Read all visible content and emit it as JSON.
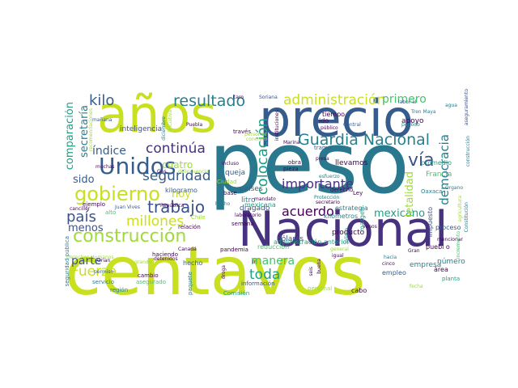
{
  "wordcloud": {
    "palette": {
      "lime": "#c8e020",
      "yellowgreen": "#a0da39",
      "green": "#4ac16d",
      "teal": "#1fa187",
      "cyan": "#277f8e",
      "blue": "#365c8d",
      "indigo": "#46327e",
      "purple": "#440154"
    },
    "words": [
      {
        "text": "peso",
        "color": "#2a788e"
      },
      {
        "text": "centavos",
        "color": "#c8e020"
      },
      {
        "text": "Nacional",
        "color": "#46327e"
      },
      {
        "text": "precio",
        "color": "#365c8d"
      },
      {
        "text": "años",
        "color": "#c8e020"
      },
      {
        "text": "construcción",
        "color": "#a0da39"
      },
      {
        "text": "Unidos",
        "color": "#365c8d"
      },
      {
        "text": "gobierno",
        "color": "#c8e020"
      },
      {
        "text": "Guardia Nacional",
        "color": "#277f8e"
      },
      {
        "text": "trabajo",
        "color": "#3b528b"
      },
      {
        "text": "resultado",
        "color": "#277f8e"
      },
      {
        "text": "administración",
        "color": "#c8e020"
      },
      {
        "text": "colocación",
        "color": "#1fa187"
      },
      {
        "text": "seguridad",
        "color": "#365c8d"
      },
      {
        "text": "continúa",
        "color": "#46327e"
      },
      {
        "text": "millones",
        "color": "#c8e020"
      },
      {
        "text": "kilo",
        "color": "#365c8d"
      },
      {
        "text": "país",
        "color": "#3b528b"
      },
      {
        "text": "acuerdo",
        "color": "#440154"
      },
      {
        "text": "importante",
        "color": "#46327e"
      },
      {
        "text": "vía",
        "color": "#3b528b"
      },
      {
        "text": "Fuerza",
        "color": "#c8e020"
      },
      {
        "text": "toda",
        "color": "#1fa187"
      },
      {
        "text": "democracia",
        "color": "#277f8e"
      },
      {
        "text": "primero",
        "color": "#4ac16d"
      },
      {
        "text": "manera",
        "color": "#4ac16d"
      },
      {
        "text": "parte",
        "color": "#3b528b"
      },
      {
        "text": "mexicano",
        "color": "#1fa187"
      },
      {
        "text": "comparación",
        "color": "#1fa187"
      },
      {
        "text": "secretaría",
        "color": "#277f8e"
      },
      {
        "text": "índice",
        "color": "#365c8d"
      },
      {
        "text": "cuatro",
        "color": "#a0da39"
      },
      {
        "text": "hoy",
        "color": "#c8e020"
      },
      {
        "text": "sido",
        "color": "#365c8d"
      },
      {
        "text": "menos",
        "color": "#3b528b"
      },
      {
        "text": "letalidad",
        "color": "#a0da39"
      },
      {
        "text": "Francia",
        "color": "#4ac16d"
      },
      {
        "text": "estrategia",
        "color": "#277f8e"
      },
      {
        "text": "kilómetros",
        "color": "#277f8e"
      },
      {
        "text": "litro",
        "color": "#277f8e"
      },
      {
        "text": "dragado",
        "color": "#3b528b"
      },
      {
        "text": "mexicana",
        "color": "#1fa187"
      },
      {
        "text": "semana",
        "color": "#440154"
      },
      {
        "text": "países",
        "color": "#365c8d"
      },
      {
        "text": "queja",
        "color": "#365c8d"
      },
      {
        "text": "llevamos",
        "color": "#440154"
      },
      {
        "text": "apoyo",
        "color": "#440154"
      },
      {
        "text": "tiempo",
        "color": "#440154"
      },
      {
        "text": "ido",
        "color": "#440154"
      },
      {
        "text": "inteligencia",
        "color": "#3b528b"
      },
      {
        "text": "impuesto",
        "color": "#3b528b"
      },
      {
        "text": "promedio",
        "color": "#1fa187"
      },
      {
        "text": "número",
        "color": "#277f8e"
      },
      {
        "text": "empresa",
        "color": "#277f8e"
      },
      {
        "text": "proceso",
        "color": "#365c8d"
      },
      {
        "text": "producto",
        "color": "#440154"
      },
      {
        "text": "empleo",
        "color": "#365c8d"
      },
      {
        "text": "hecho",
        "color": "#365c8d"
      },
      {
        "text": "cabo",
        "color": "#440154"
      },
      {
        "text": "puebl o",
        "color": "#440154"
      },
      {
        "text": "margen",
        "color": "#1fa187"
      },
      {
        "text": "dólares",
        "color": "#3b528b"
      },
      {
        "text": "reducción",
        "color": "#4ac16d"
      },
      {
        "text": "seguridad pública",
        "color": "#277f8e"
      },
      {
        "text": "servicio",
        "color": "#277f8e"
      },
      {
        "text": "cambio",
        "color": "#440154"
      },
      {
        "text": "asegurado",
        "color": "#4ac16d"
      },
      {
        "text": "paquete",
        "color": "#277f8e"
      },
      {
        "text": "región",
        "color": "#277f8e"
      },
      {
        "text": "información",
        "color": "#3b528b"
      },
      {
        "text": "Comisión",
        "color": "#1fa187"
      },
      {
        "text": "personal",
        "color": "#a0da39"
      },
      {
        "text": "planta",
        "color": "#1fa187"
      },
      {
        "text": "área",
        "color": "#440154"
      },
      {
        "text": "kilogramo",
        "color": "#365c8d"
      },
      {
        "text": "ejemplo",
        "color": "#440154"
      },
      {
        "text": "relación",
        "color": "#440154"
      },
      {
        "text": "base",
        "color": "#440154"
      },
      {
        "text": "obra",
        "color": "#440154"
      },
      {
        "text": "pieza",
        "color": "#440154"
      },
      {
        "text": "tramo",
        "color": "#365c8d"
      },
      {
        "text": "derecho",
        "color": "#440154"
      },
      {
        "text": "Ley",
        "color": "#440154"
      },
      {
        "text": "Oaxaca",
        "color": "#277f8e"
      },
      {
        "text": "Ciudad",
        "color": "#a0da39"
      },
      {
        "text": "Chile",
        "color": "#a0da39"
      },
      {
        "text": "pandemia",
        "color": "#440154"
      },
      {
        "text": "laboratorio",
        "color": "#440154"
      },
      {
        "text": "haciendo",
        "color": "#440154"
      },
      {
        "text": "alto",
        "color": "#4ac16d"
      },
      {
        "text": "través",
        "color": "#440154"
      },
      {
        "text": "Soriana",
        "color": "#3b528b"
      },
      {
        "text": "Tren Maya",
        "color": "#277f8e"
      },
      {
        "text": "labor al",
        "color": "#365c8d"
      },
      {
        "text": "caro",
        "color": "#440154"
      },
      {
        "text": "Puebla",
        "color": "#440154"
      },
      {
        "text": "Central",
        "color": "#365c8d"
      },
      {
        "text": "público",
        "color": "#440154"
      },
      {
        "text": "presa",
        "color": "#440154"
      },
      {
        "text": "mañana",
        "color": "#365c8d"
      },
      {
        "text": "diciembre",
        "color": "#277f8e"
      },
      {
        "text": "muchas",
        "color": "#440154"
      },
      {
        "text": "canciller",
        "color": "#440154"
      },
      {
        "text": "permiso",
        "color": "#365c8d"
      },
      {
        "text": "Canadá",
        "color": "#440154"
      },
      {
        "text": "Orian",
        "color": "#440154"
      },
      {
        "text": "grande",
        "color": "#a0da39"
      },
      {
        "text": "mandato",
        "color": "#440154"
      },
      {
        "text": "incluso",
        "color": "#440154"
      },
      {
        "text": "Marina",
        "color": "#440154"
      },
      {
        "text": "venos",
        "color": "#440154"
      },
      {
        "text": "cinco",
        "color": "#440154"
      },
      {
        "text": "hacia",
        "color": "#277f8e"
      },
      {
        "text": "fecha",
        "color": "#a0da39"
      },
      {
        "text": "Protección",
        "color": "#277f8e"
      },
      {
        "text": "general",
        "color": "#a0da39"
      },
      {
        "text": "secretario",
        "color": "#440154"
      },
      {
        "text": "seis",
        "color": "#440154"
      },
      {
        "text": "buena",
        "color": "#440154"
      },
      {
        "text": "igual",
        "color": "#440154"
      },
      {
        "text": "Gran",
        "color": "#440154"
      },
      {
        "text": "mencionar",
        "color": "#440154"
      },
      {
        "text": "incremento",
        "color": "#4ac16d"
      },
      {
        "text": "Constitución",
        "color": "#277f8e"
      },
      {
        "text": "periodo",
        "color": "#277f8e"
      },
      {
        "text": "agua",
        "color": "#277f8e"
      },
      {
        "text": "Órgano",
        "color": "#277f8e"
      },
      {
        "text": "personas",
        "color": "#a0da39"
      },
      {
        "text": "concreto",
        "color": "#a0da39"
      },
      {
        "text": "República",
        "color": "#440154"
      },
      {
        "text": "detenidos",
        "color": "#440154"
      },
      {
        "text": "administración anterior",
        "color": "#1fa187"
      },
      {
        "text": "instituciones",
        "color": "#440154"
      },
      {
        "text": "construcción",
        "color": "#277f8e"
      },
      {
        "text": "esfuerzo",
        "color": "#277f8e"
      },
      {
        "text": "recomendaciones",
        "color": "#a0da39"
      },
      {
        "text": "Derechos Humanos",
        "color": "#a0da39"
      },
      {
        "text": "Jalisco",
        "color": "#277f8e"
      },
      {
        "text": "aseguramiento",
        "color": "#3b528b"
      },
      {
        "text": "iniciativa",
        "color": "#a0da39"
      },
      {
        "text": "Juan Vives",
        "color": "#365c8d"
      },
      {
        "text": "agricultura",
        "color": "#a0da39"
      },
      {
        "text": "droga",
        "color": "#440154"
      },
      {
        "text": "delincuencia",
        "color": "#a0da39"
      },
      {
        "text": "Ir",
        "color": "#440154"
      },
      {
        "text": "Gas",
        "color": "#440154"
      },
      {
        "text": "hecho",
        "color": "#277f8e"
      }
    ]
  }
}
